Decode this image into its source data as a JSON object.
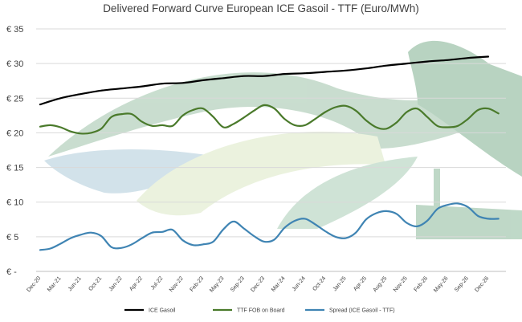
{
  "chart_data": {
    "type": "line",
    "title": "Delivered Forward Curve European ICE Gasoil - TTF (Euro/MWh)",
    "xlabel": "",
    "ylabel": "",
    "ylim": [
      0,
      35
    ],
    "yticks": [
      0,
      5,
      10,
      15,
      20,
      25,
      30,
      35
    ],
    "ytick_labels": [
      "€ -",
      "€ 5",
      "€ 10",
      "€ 15",
      "€ 20",
      "€ 25",
      "€ 30",
      "€ 35"
    ],
    "x_tick_labels": [
      "Dec-20",
      "Mar-21",
      "Jun-21",
      "Oct-21",
      "Jan-22",
      "Apr-22",
      "Jul-22",
      "Nov-22",
      "Feb-23",
      "May-23",
      "Sep-23",
      "Dec-23",
      "Mar-24",
      "Jun-24",
      "Oct-24",
      "Jan-25",
      "Apr-25",
      "Aug-25",
      "Nov-25",
      "Feb-26",
      "May-26",
      "Sep-26",
      "Dec-26"
    ],
    "grid": true,
    "legend_position": "bottom",
    "series": [
      {
        "name": "ICE Gasoil",
        "color": "#000000",
        "x": [
          0,
          1,
          2,
          3,
          4,
          5,
          6,
          7,
          8,
          9,
          10,
          11,
          12,
          13,
          14,
          15,
          16,
          17,
          18,
          19,
          20,
          21,
          22
        ],
        "values": [
          24.1,
          25.0,
          25.6,
          26.1,
          26.4,
          26.7,
          27.1,
          27.2,
          27.6,
          27.9,
          28.2,
          28.2,
          28.5,
          28.6,
          28.8,
          29.0,
          29.3,
          29.7,
          30.0,
          30.3,
          30.5,
          30.8,
          31.0
        ]
      },
      {
        "name": "TTF FOB on Board",
        "color": "#4a7a2b",
        "x": [
          0,
          0.5,
          1,
          1.5,
          2,
          2.5,
          3,
          3.5,
          4,
          4.5,
          5,
          5.5,
          6,
          6.5,
          7,
          7.5,
          8,
          8.5,
          9,
          9.5,
          10,
          10.5,
          11,
          11.5,
          12,
          12.5,
          13,
          13.5,
          14,
          14.5,
          15,
          15.5,
          16,
          16.5,
          17,
          17.5,
          18,
          18.5,
          19,
          19.5,
          20,
          20.5,
          21,
          21.5,
          22,
          22.5
        ],
        "values": [
          20.9,
          21.1,
          20.8,
          20.2,
          19.9,
          20.0,
          20.6,
          22.3,
          22.7,
          22.7,
          21.6,
          21.0,
          21.1,
          21.0,
          22.5,
          23.3,
          23.5,
          22.3,
          20.8,
          21.3,
          22.2,
          23.2,
          24.0,
          23.5,
          22.0,
          21.1,
          21.1,
          22.0,
          23.0,
          23.7,
          23.9,
          23.2,
          21.8,
          20.8,
          20.6,
          21.5,
          23.0,
          23.5,
          22.3,
          21.0,
          20.8,
          21.0,
          22.0,
          23.3,
          23.5,
          22.8
        ]
      },
      {
        "name": "Spread (ICE Gasoil - TTF)",
        "color": "#3f84b3",
        "x": [
          0,
          0.5,
          1,
          1.5,
          2,
          2.5,
          3,
          3.5,
          4,
          4.5,
          5,
          5.5,
          6,
          6.5,
          7,
          7.5,
          8,
          8.5,
          9,
          9.5,
          10,
          10.5,
          11,
          11.5,
          12,
          12.5,
          13,
          13.5,
          14,
          14.5,
          15,
          15.5,
          16,
          16.5,
          17,
          17.5,
          18,
          18.5,
          19,
          19.5,
          20,
          20.5,
          21,
          21.5,
          22,
          22.5
        ],
        "values": [
          3.1,
          3.3,
          4.0,
          4.8,
          5.3,
          5.6,
          5.1,
          3.5,
          3.4,
          3.9,
          4.8,
          5.6,
          5.7,
          6.0,
          4.5,
          3.8,
          3.9,
          4.3,
          6.1,
          7.2,
          6.2,
          5.1,
          4.3,
          4.6,
          6.3,
          7.3,
          7.6,
          6.8,
          5.8,
          5.0,
          4.8,
          5.6,
          7.5,
          8.4,
          8.7,
          8.3,
          7.0,
          6.5,
          7.3,
          9.0,
          9.6,
          9.8,
          9.3,
          8.0,
          7.6,
          7.6
        ]
      }
    ]
  }
}
